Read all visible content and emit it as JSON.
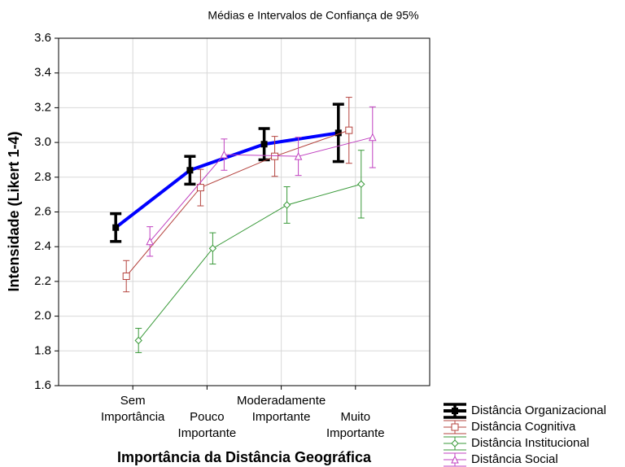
{
  "chart_data": {
    "type": "line",
    "title": "Médias e Intervalos de Confiança de 95%",
    "x_label": "Importância da Distância Geográfica",
    "y_label": "Intensidade (Likert 1-4)",
    "categories": [
      "Sem\nImportância",
      "Pouco\nImportante",
      "Moderadamente\nImportante",
      "Muito\nImportante"
    ],
    "ylim": [
      1.6,
      3.6
    ],
    "yticks": [
      1.6,
      1.8,
      {
        "value": 2,
        "label": "2.0"
      },
      2.2,
      2.4,
      2.6,
      2.8,
      {
        "value": 3,
        "label": "3.0"
      },
      3.2,
      3.4,
      3.6
    ],
    "grid": true,
    "legend": "bottom-right",
    "series": [
      {
        "name": "Distância Organizacional",
        "color": "#0000ff",
        "marker_color": "#000000",
        "marker": "square-filled",
        "values": [
          2.51,
          2.84,
          2.99,
          3.055
        ],
        "errors": [
          0.08,
          0.08,
          0.09,
          0.165
        ]
      },
      {
        "name": "Distância Cognitiva",
        "color": "#b5443f",
        "marker_color": "#b5443f",
        "marker": "square",
        "values": [
          2.23,
          2.74,
          2.92,
          3.07
        ],
        "errors": [
          0.09,
          0.105,
          0.115,
          0.19
        ]
      },
      {
        "name": "Distância Institucional",
        "color": "#3a9a3a",
        "marker_color": "#3a9a3a",
        "marker": "diamond",
        "values": [
          1.86,
          2.39,
          2.64,
          2.76
        ],
        "errors": [
          0.07,
          0.09,
          0.105,
          0.195
        ]
      },
      {
        "name": "Distância Social",
        "color": "#c040c0",
        "marker_color": "#c040c0",
        "marker": "triangle",
        "values": [
          2.43,
          2.93,
          2.92,
          3.03
        ],
        "errors": [
          0.085,
          0.09,
          0.11,
          0.175
        ]
      }
    ]
  }
}
